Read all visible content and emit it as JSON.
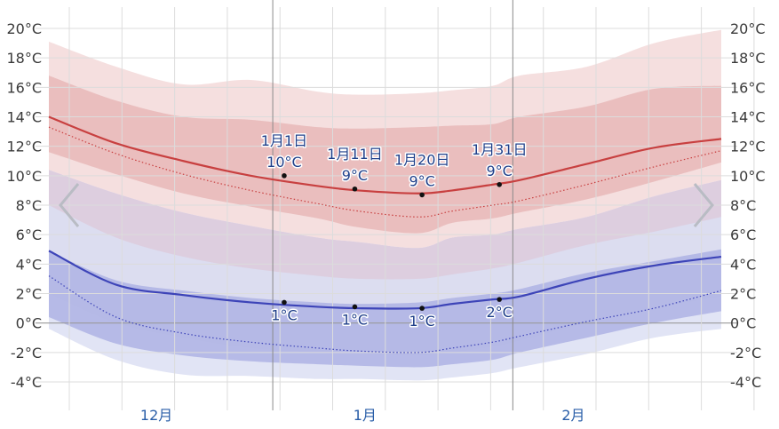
{
  "chart_data": {
    "type": "area",
    "y_unit": "°C",
    "ylim": [
      -4,
      20
    ],
    "y_ticks": [
      "20°C",
      "18°C",
      "16°C",
      "14°C",
      "12°C",
      "10°C",
      "8°C",
      "6°C",
      "4°C",
      "2°C",
      "0°C",
      "-2°C",
      "-4°C"
    ],
    "months": [
      {
        "label": "12月",
        "x": 16
      },
      {
        "label": "1月",
        "x": 47
      },
      {
        "label": "2月",
        "x": 78
      }
    ],
    "x_start": "11月16日",
    "x_end": "2月24日",
    "x": [
      0,
      10,
      20,
      30,
      40,
      46,
      55,
      60,
      66,
      70,
      80,
      90,
      100
    ],
    "series": [
      {
        "values": [
          14.0,
          12.2,
          11.0,
          10.0,
          9.3,
          9.0,
          8.8,
          9.0,
          9.4,
          9.7,
          10.8,
          11.9,
          12.5
        ]
      },
      {
        "values": [
          13.3,
          11.5,
          10.1,
          9.0,
          8.1,
          7.6,
          7.2,
          7.6,
          8.0,
          8.3,
          9.4,
          10.6,
          11.7
        ]
      },
      {
        "values": [
          4.9,
          2.6,
          1.9,
          1.4,
          1.1,
          1.0,
          1.0,
          1.3,
          1.6,
          1.8,
          3.0,
          3.9,
          4.5
        ]
      },
      {
        "values": [
          3.2,
          0.4,
          -0.7,
          -1.3,
          -1.7,
          -1.9,
          -2.0,
          -1.7,
          -1.3,
          -0.9,
          0.1,
          1.0,
          2.2
        ]
      }
    ],
    "bands": [
      {
        "upper": [
          19.1,
          17.4,
          16.2,
          16.5,
          15.7,
          15.5,
          15.6,
          15.8,
          16.1,
          16.8,
          17.4,
          19.0,
          19.9
        ],
        "lower": [
          10.4,
          8.8,
          7.5,
          6.6,
          5.8,
          5.5,
          5.1,
          5.8,
          6.0,
          6.4,
          7.2,
          8.6,
          9.7
        ],
        "color": "#f3d9d9"
      },
      {
        "upper": [
          16.8,
          15.1,
          14.0,
          13.8,
          13.3,
          13.2,
          13.3,
          13.4,
          13.5,
          14.0,
          14.7,
          15.9,
          16.1
        ],
        "lower": [
          11.6,
          10.1,
          8.8,
          7.9,
          7.1,
          6.5,
          6.1,
          6.8,
          7.1,
          7.5,
          8.4,
          9.6,
          10.9
        ],
        "color": "#e7b8b8"
      },
      {
        "upper": [
          10.4,
          8.8,
          7.5,
          6.6,
          5.8,
          5.5,
          5.1,
          5.8,
          6.0,
          6.4,
          7.2,
          8.6,
          9.7
        ],
        "lower": [
          2.0,
          0.0,
          -1.0,
          -1.7,
          -2.0,
          -2.1,
          -2.2,
          -2.0,
          -1.6,
          -1.2,
          0.0,
          1.0,
          1.8
        ],
        "color": "#d7c5d9"
      },
      {
        "upper": [
          8.0,
          5.8,
          4.5,
          3.7,
          3.2,
          3.0,
          3.0,
          3.3,
          3.7,
          4.1,
          5.3,
          6.2,
          7.2
        ],
        "lower": [
          -0.4,
          -2.5,
          -3.5,
          -3.6,
          -3.8,
          -3.8,
          -3.9,
          -3.7,
          -3.4,
          -3.0,
          -2.1,
          -1.0,
          -0.4
        ],
        "color": "#dcdff3"
      },
      {
        "upper": [
          4.9,
          2.9,
          2.2,
          1.7,
          1.4,
          1.3,
          1.4,
          1.7,
          2.0,
          2.3,
          3.4,
          4.2,
          5.0
        ],
        "lower": [
          0.4,
          -1.4,
          -2.2,
          -2.6,
          -2.8,
          -2.9,
          -3.0,
          -2.8,
          -2.5,
          -2.0,
          -1.0,
          0.0,
          0.8
        ],
        "color": "#aeb3e4"
      }
    ],
    "annotations": [
      {
        "date": "1月1日",
        "high": "10°C",
        "low": "1°C",
        "x": 35,
        "hi_val": 10.0,
        "lo_val": 1.4
      },
      {
        "date": "1月11日",
        "high": "9°C",
        "low": "1°C",
        "x": 45.5,
        "hi_val": 9.1,
        "lo_val": 1.1
      },
      {
        "date": "1月20日",
        "high": "9°C",
        "low": "1°C",
        "x": 55.5,
        "hi_val": 8.7,
        "lo_val": 1.0
      },
      {
        "date": "1月31日",
        "high": "9°C",
        "low": "2°C",
        "x": 67,
        "hi_val": 9.4,
        "lo_val": 1.6
      }
    ],
    "colors": {
      "high_line": "#c84040",
      "low_line": "#3d44b8",
      "grid": "#dcdcdc",
      "zero_line": "#9a9a9a",
      "month_divider": "#8a8a8a"
    },
    "grid": true
  },
  "nav": {
    "prev_icon": "chevron-left-icon",
    "next_icon": "chevron-right-icon"
  }
}
